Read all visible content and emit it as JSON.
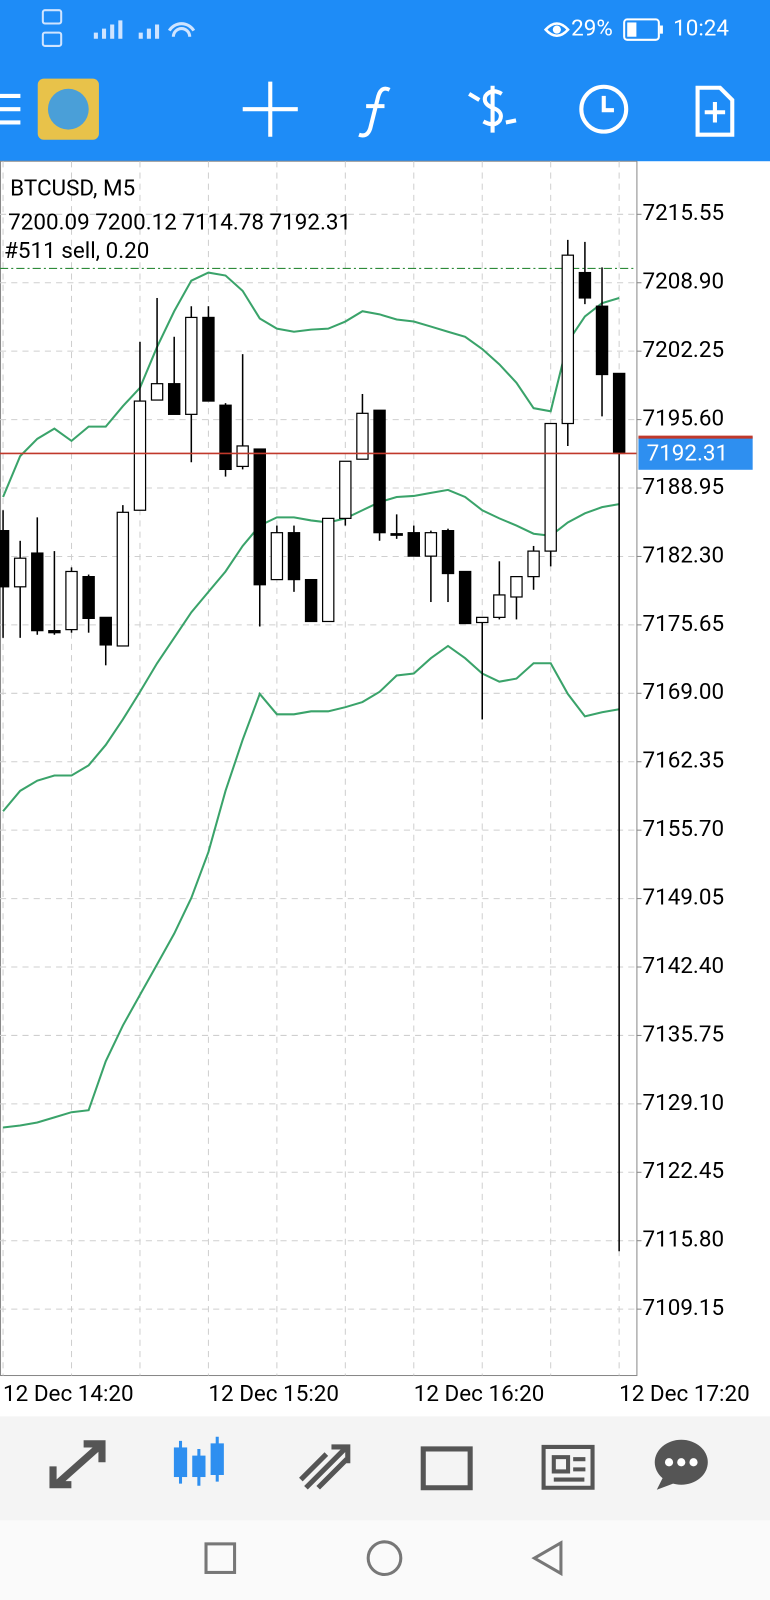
{
  "status_bar": {
    "battery": "29%",
    "time": "10:24"
  },
  "chart_data": {
    "type": "candlestick",
    "symbol": "BTCUSD, M5",
    "order": "#511 sell, 0.20",
    "categories": [
      "12 Dec 14:20",
      null,
      null,
      null,
      null,
      null,
      null,
      null,
      null,
      null,
      null,
      null,
      "12 Dec 15:20",
      null,
      null,
      null,
      null,
      null,
      null,
      null,
      null,
      null,
      null,
      null,
      "12 Dec 16:20",
      null,
      null,
      null,
      null,
      null,
      null,
      null,
      null,
      null,
      null,
      null,
      "12 Dec 17:20"
    ],
    "open": [
      7184.81,
      7179.35,
      7182.63,
      7175.09,
      7175.19,
      7180.34,
      7176.38,
      7173.6,
      7186.79,
      7197.5,
      7199.09,
      7196.11,
      7205.53,
      7197.0,
      7191.05,
      7192.74,
      7180.05,
      7184.61,
      7180.05,
      7175.98,
      7186.0,
      7191.75,
      7196.51,
      7184.51,
      7184.61,
      7182.33,
      7184.81,
      7180.84,
      7175.88,
      7176.38,
      7178.36,
      7180.34,
      7182.82,
      7195.22,
      7209.89,
      7206.62,
      7200.09
    ],
    "high": [
      7186.79,
      7183.82,
      7186.1,
      7182.82,
      7181.24,
      7180.54,
      7176.38,
      7187.29,
      7203.15,
      7207.42,
      7203.65,
      7206.62,
      7206.62,
      7197.2,
      7201.96,
      7192.74,
      7185.3,
      7185.3,
      7180.05,
      7186.0,
      7191.55,
      7198.09,
      7196.51,
      7186.39,
      7185.3,
      7184.81,
      7185.0,
      7180.84,
      7176.38,
      7181.83,
      7180.34,
      7183.32,
      7195.22,
      7213.07,
      7212.87,
      7210.39,
      7200.12
    ],
    "low": [
      7174.39,
      7174.39,
      7174.69,
      7174.69,
      7174.89,
      7174.89,
      7171.72,
      7173.6,
      7186.79,
      7197.5,
      7196.11,
      7191.45,
      7197.4,
      7190.06,
      7190.76,
      7175.49,
      7180.05,
      7178.86,
      7175.98,
      7175.98,
      7185.3,
      7191.75,
      7183.82,
      7184.01,
      7182.33,
      7177.87,
      7177.87,
      7175.78,
      7166.46,
      7176.18,
      7176.18,
      7179.06,
      7181.34,
      7193.04,
      7206.82,
      7195.91,
      7114.78
    ],
    "close": [
      7179.35,
      7182.13,
      7175.09,
      7174.89,
      7180.84,
      7176.28,
      7173.7,
      7186.59,
      7197.4,
      7199.09,
      7196.11,
      7205.53,
      7197.4,
      7190.76,
      7193.04,
      7179.55,
      7184.61,
      7180.05,
      7175.98,
      7186.0,
      7191.55,
      7196.21,
      7184.61,
      7184.41,
      7182.33,
      7184.61,
      7180.64,
      7175.78,
      7176.38,
      7178.56,
      7180.34,
      7182.82,
      7195.22,
      7211.58,
      7207.42,
      7199.98,
      7192.31
    ],
    "bull_color": "#ffffff",
    "bear_color": "#000000",
    "bands": {
      "color": "#3aa36a",
      "upper": [
        7188.08,
        7192.05,
        7193.73,
        7194.72,
        7193.53,
        7194.92,
        7194.92,
        7196.9,
        7198.69,
        7202.66,
        7206.13,
        7209.1,
        7209.89,
        7209.6,
        7208.11,
        7205.43,
        7204.44,
        7204.14,
        7204.34,
        7204.44,
        7205.13,
        7206.13,
        7205.83,
        7205.33,
        7205.13,
        7204.64,
        7204.14,
        7203.65,
        7202.46,
        7200.97,
        7199.18,
        7196.71,
        7196.41,
        7203.15,
        7205.63,
        7206.92,
        7207.42
      ],
      "middle": [
        7157.54,
        7159.52,
        7160.51,
        7161.01,
        7161.01,
        7162.0,
        7163.98,
        7166.46,
        7169.14,
        7171.92,
        7174.39,
        7176.87,
        7178.86,
        7180.84,
        7183.32,
        7185.3,
        7186.1,
        7186.1,
        7185.8,
        7185.6,
        7186.0,
        7186.79,
        7187.58,
        7188.08,
        7188.18,
        7188.48,
        7188.77,
        7188.08,
        7186.79,
        7186.0,
        7185.3,
        7184.51,
        7184.31,
        7185.6,
        7186.49,
        7187.09,
        7187.38
      ],
      "lower": [
        7126.8,
        7127.0,
        7127.29,
        7127.79,
        7128.29,
        7128.48,
        7133.24,
        7136.71,
        7139.69,
        7142.66,
        7145.64,
        7149.11,
        7153.57,
        7159.52,
        7164.48,
        7168.94,
        7166.96,
        7166.96,
        7167.25,
        7167.25,
        7167.65,
        7168.15,
        7169.14,
        7170.73,
        7170.92,
        7172.41,
        7173.6,
        7172.41,
        7170.92,
        7170.13,
        7170.43,
        7171.92,
        7171.92,
        7168.94,
        7166.76,
        7167.16,
        7167.45
      ]
    },
    "sell_level": 7210.29,
    "price_line_color": "#c0392b",
    "price_tag_color": "#2e8ff0",
    "ylim": [
      7102.7,
      7220.71
    ],
    "yticks": [
      7215.55,
      {
        "value": 7208.9,
        "label": "7208.90"
      },
      7202.25,
      {
        "value": 7195.6,
        "label": "7195.60"
      },
      7188.95,
      {
        "value": 7182.3,
        "label": "7182.30"
      },
      7175.65,
      {
        "value": 7169,
        "label": "7169.00"
      },
      7162.35,
      {
        "value": 7155.7,
        "label": "7155.70"
      },
      7149.05,
      {
        "value": 7142.4,
        "label": "7142.40"
      },
      7135.75,
      {
        "value": 7129.1,
        "label": "7129.10"
      },
      7122.45,
      {
        "value": 7115.8,
        "label": "7115.80"
      },
      7109.15
    ],
    "grid": true
  }
}
